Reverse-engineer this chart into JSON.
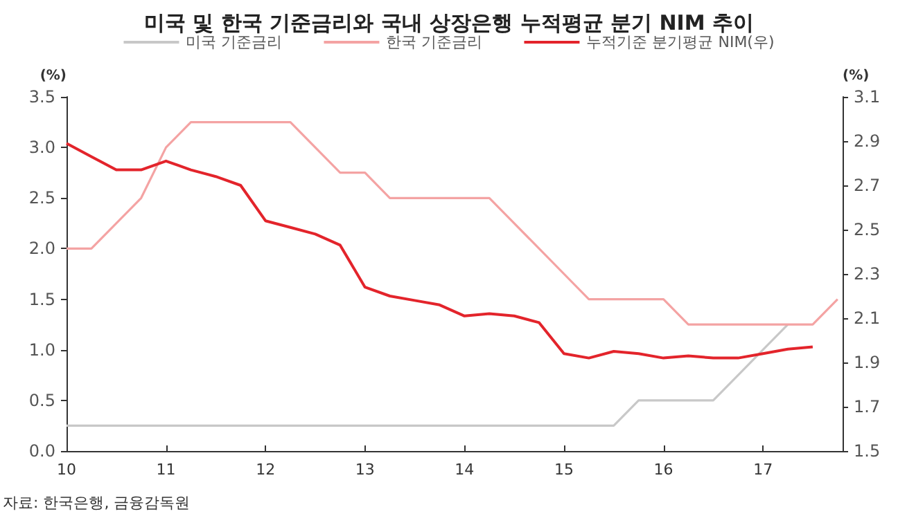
{
  "chart_data": {
    "type": "line",
    "title": "미국 및 한국 기준금리와 국내 상장은행 누적평균 분기 NIM 추이",
    "ylabel": "(%)",
    "y2label": "(%)",
    "annotations": [
      "자료: 한국은행, 금융감독원"
    ],
    "xlim": [
      10,
      17.8
    ],
    "xticks": [
      10,
      11,
      12,
      13,
      14,
      15,
      16,
      17
    ],
    "ylim": [
      0,
      3.5
    ],
    "yticks": [
      {
        "value": 0,
        "label": "0.0"
      },
      0.5,
      {
        "value": 1,
        "label": "1.0"
      },
      1.5,
      {
        "value": 2,
        "label": "2.0"
      },
      2.5,
      {
        "value": 3,
        "label": "3.0"
      },
      3.5
    ],
    "y2lim": [
      1.5,
      3.1
    ],
    "y2ticks": [
      1.5,
      1.7,
      1.9,
      2.1,
      2.3,
      2.5,
      2.7,
      2.9,
      3.1
    ],
    "grid": false,
    "legend": "top",
    "marker": "none",
    "line_style": "solid",
    "series": [
      {
        "name": "미국 기준금리",
        "color": "#c8c8c8",
        "x": [
          10,
          10.25,
          10.5,
          10.75,
          11,
          11.25,
          11.5,
          11.75,
          12,
          12.25,
          12.5,
          12.75,
          13,
          13.25,
          13.5,
          13.75,
          14,
          14.25,
          14.5,
          14.75,
          15,
          15.25,
          15.5,
          15.75,
          16,
          16.25,
          16.5,
          16.75,
          17,
          17.25
        ],
        "values": [
          0.25,
          0.25,
          0.25,
          0.25,
          0.25,
          0.25,
          0.25,
          0.25,
          0.25,
          0.25,
          0.25,
          0.25,
          0.25,
          0.25,
          0.25,
          0.25,
          0.25,
          0.25,
          0.25,
          0.25,
          0.25,
          0.25,
          0.25,
          0.5,
          0.5,
          0.5,
          0.5,
          0.75,
          1.0,
          1.25
        ]
      },
      {
        "name": "한국 기준금리",
        "color": "#f4a3a3",
        "x": [
          10,
          10.25,
          10.5,
          10.75,
          11,
          11.25,
          11.5,
          11.75,
          12,
          12.25,
          12.5,
          12.75,
          13,
          13.25,
          13.5,
          13.75,
          14,
          14.25,
          14.5,
          14.75,
          15,
          15.25,
          15.5,
          15.75,
          16,
          16.25,
          16.5,
          16.75,
          17,
          17.25,
          17.5,
          17.75
        ],
        "values": [
          2.0,
          2.0,
          2.25,
          2.5,
          3.0,
          3.25,
          3.25,
          3.25,
          3.25,
          3.25,
          3.0,
          2.75,
          2.75,
          2.5,
          2.5,
          2.5,
          2.5,
          2.5,
          2.25,
          2.0,
          1.75,
          1.5,
          1.5,
          1.5,
          1.5,
          1.25,
          1.25,
          1.25,
          1.25,
          1.25,
          1.25,
          1.5
        ]
      },
      {
        "name": "누적기준 분기평균 NIM(우)",
        "color": "#e3242b",
        "axis": "y2",
        "x": [
          10,
          10.25,
          10.5,
          10.75,
          11,
          11.25,
          11.5,
          11.75,
          12,
          12.25,
          12.5,
          12.75,
          13,
          13.25,
          13.5,
          13.75,
          14,
          14.25,
          14.5,
          14.75,
          15,
          15.25,
          15.5,
          15.75,
          16,
          16.25,
          16.5,
          16.75,
          17,
          17.25,
          17.5
        ],
        "values": [
          2.89,
          2.83,
          2.77,
          2.77,
          2.81,
          2.77,
          2.74,
          2.7,
          2.54,
          2.51,
          2.48,
          2.43,
          2.24,
          2.2,
          2.18,
          2.16,
          2.11,
          2.12,
          2.11,
          2.08,
          1.94,
          1.92,
          1.95,
          1.94,
          1.92,
          1.93,
          1.92,
          1.92,
          1.94,
          1.96,
          1.97
        ]
      }
    ]
  }
}
